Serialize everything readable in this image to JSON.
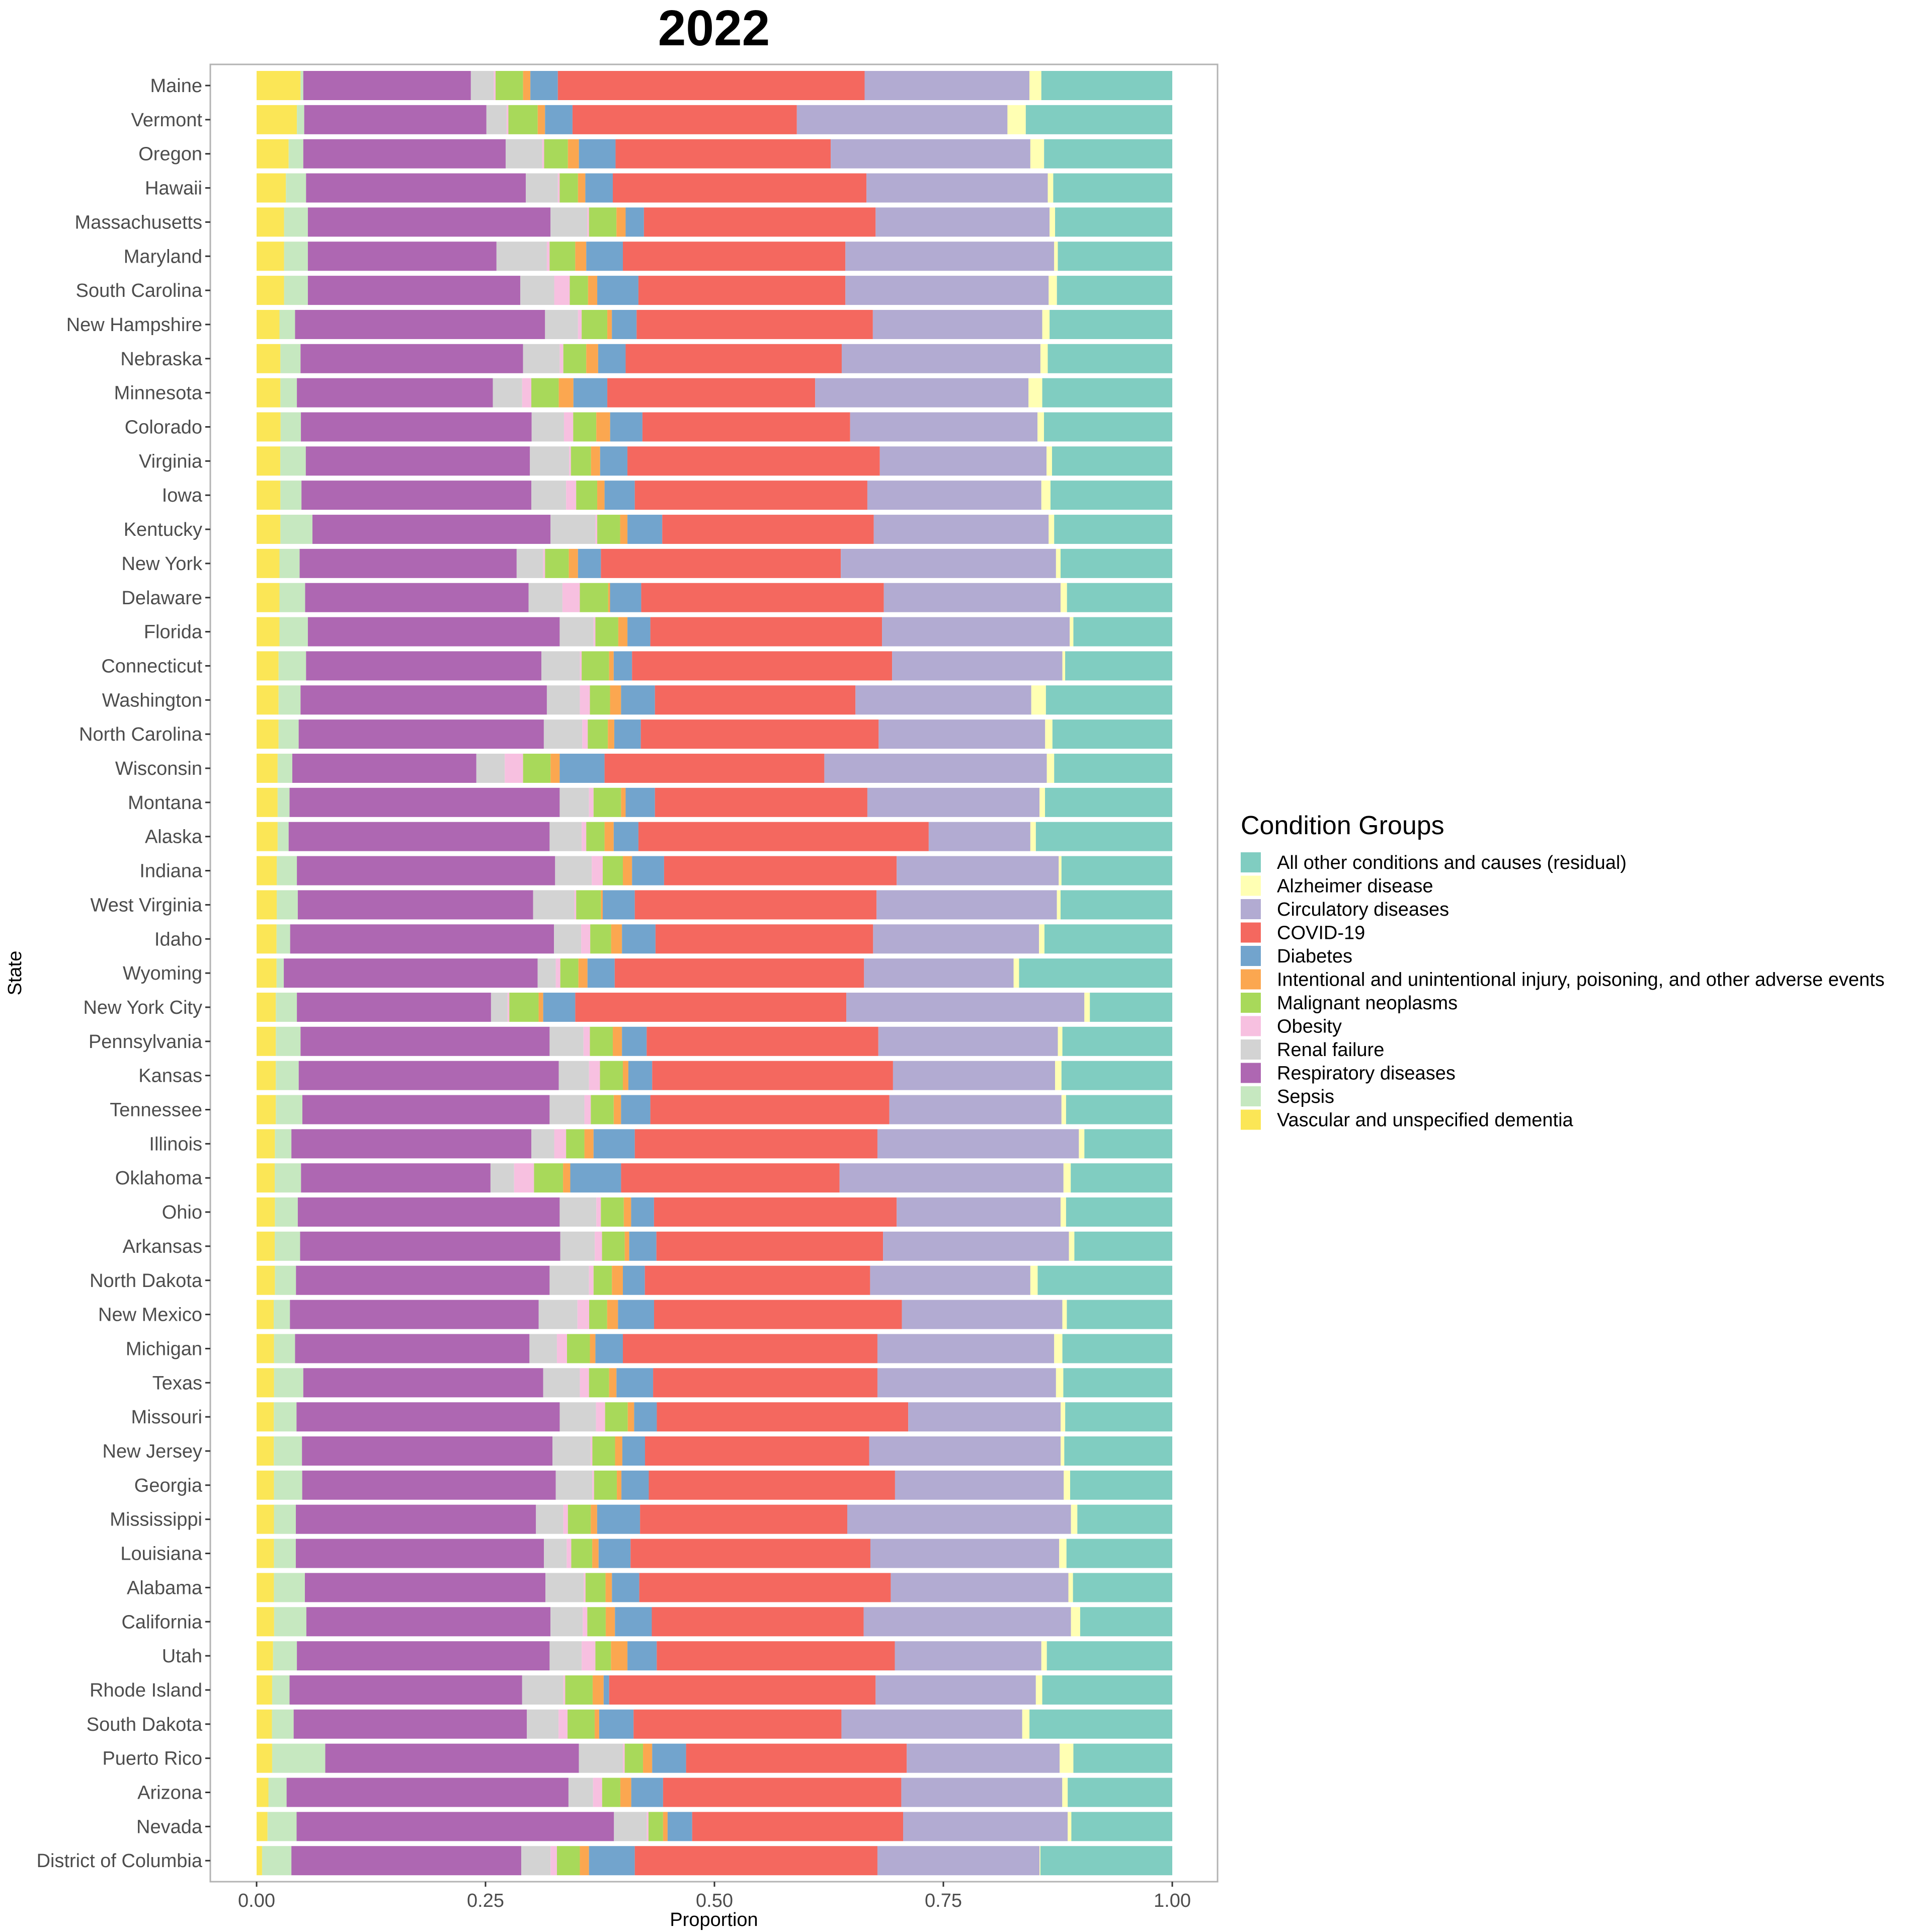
{
  "chart_data": {
    "type": "bar",
    "orientation": "horizontal",
    "stacked": true,
    "title": "2022",
    "xlabel": "Proportion",
    "ylabel": "State",
    "xlim": [
      0,
      1
    ],
    "xticks": [
      "0.00",
      "0.25",
      "0.50",
      "0.75",
      "1.00"
    ],
    "xtick_values": [
      0,
      0.25,
      0.5,
      0.75,
      1
    ],
    "grid": false,
    "legend_position": "right",
    "legend_title": "Condition Groups",
    "legend": [
      {
        "name": "All other conditions and causes (residual)",
        "color": "#80cdc1"
      },
      {
        "name": "Alzheimer disease",
        "color": "#ffffb3"
      },
      {
        "name": "Circulatory diseases",
        "color": "#b2abd2"
      },
      {
        "name": "COVID-19",
        "color": "#f4685f"
      },
      {
        "name": "Diabetes",
        "color": "#72a4cd"
      },
      {
        "name": "Intentional and unintentional injury, poisoning, and other adverse events",
        "color": "#fba750"
      },
      {
        "name": "Malignant neoplasms",
        "color": "#a8d95a"
      },
      {
        "name": "Obesity",
        "color": "#f7c0e0"
      },
      {
        "name": "Renal failure",
        "color": "#d3d3d3"
      },
      {
        "name": "Respiratory diseases",
        "color": "#ae67b2"
      },
      {
        "name": "Sepsis",
        "color": "#c6e8c0"
      },
      {
        "name": "Vascular and unspecified dementia",
        "color": "#fbe656"
      }
    ],
    "stack_order": [
      "Vascular and unspecified dementia",
      "Sepsis",
      "Respiratory diseases",
      "Renal failure",
      "Obesity",
      "Malignant neoplasms",
      "Intentional and unintentional injury, poisoning, and other adverse events",
      "Diabetes",
      "COVID-19",
      "Circulatory diseases",
      "Alzheimer disease",
      "All other conditions and causes (residual)"
    ],
    "categories": [
      "Maine",
      "Vermont",
      "Oregon",
      "Hawaii",
      "Massachusetts",
      "Maryland",
      "South Carolina",
      "New Hampshire",
      "Nebraska",
      "Minnesota",
      "Colorado",
      "Virginia",
      "Iowa",
      "Kentucky",
      "New York",
      "Delaware",
      "Florida",
      "Connecticut",
      "Washington",
      "North Carolina",
      "Wisconsin",
      "Montana",
      "Alaska",
      "Indiana",
      "West Virginia",
      "Idaho",
      "Wyoming",
      "New York City",
      "Pennsylvania",
      "Kansas",
      "Tennessee",
      "Illinois",
      "Oklahoma",
      "Ohio",
      "Arkansas",
      "North Dakota",
      "New Mexico",
      "Michigan",
      "Texas",
      "Missouri",
      "New Jersey",
      "Georgia",
      "Mississippi",
      "Louisiana",
      "Alabama",
      "California",
      "Utah",
      "Rhode Island",
      "South Dakota",
      "Puerto Rico",
      "Arizona",
      "Nevada",
      "District of Columbia"
    ],
    "values": [
      [
        0.048,
        0.003,
        0.183,
        0.025,
        0.002,
        0.03,
        0.008,
        0.03,
        0.335,
        0.18,
        0.013,
        0.143
      ],
      [
        0.044,
        0.008,
        0.199,
        0.022,
        0.002,
        0.032,
        0.008,
        0.03,
        0.245,
        0.23,
        0.02,
        0.16
      ],
      [
        0.035,
        0.016,
        0.221,
        0.04,
        0.002,
        0.026,
        0.012,
        0.04,
        0.235,
        0.218,
        0.015,
        0.14
      ],
      [
        0.032,
        0.022,
        0.24,
        0.035,
        0.002,
        0.02,
        0.008,
        0.03,
        0.277,
        0.198,
        0.006,
        0.13
      ],
      [
        0.03,
        0.026,
        0.265,
        0.04,
        0.002,
        0.03,
        0.01,
        0.02,
        0.253,
        0.19,
        0.006,
        0.128
      ],
      [
        0.03,
        0.026,
        0.206,
        0.055,
        0.003,
        0.028,
        0.012,
        0.04,
        0.243,
        0.228,
        0.004,
        0.125
      ],
      [
        0.03,
        0.026,
        0.232,
        0.037,
        0.017,
        0.02,
        0.01,
        0.045,
        0.226,
        0.222,
        0.009,
        0.126
      ],
      [
        0.025,
        0.017,
        0.273,
        0.036,
        0.004,
        0.028,
        0.005,
        0.027,
        0.258,
        0.185,
        0.008,
        0.134
      ],
      [
        0.026,
        0.022,
        0.243,
        0.04,
        0.004,
        0.025,
        0.013,
        0.03,
        0.236,
        0.217,
        0.008,
        0.136
      ],
      [
        0.026,
        0.018,
        0.214,
        0.032,
        0.01,
        0.03,
        0.016,
        0.037,
        0.227,
        0.233,
        0.015,
        0.142
      ],
      [
        0.026,
        0.022,
        0.25,
        0.035,
        0.01,
        0.025,
        0.015,
        0.035,
        0.225,
        0.203,
        0.007,
        0.139
      ],
      [
        0.026,
        0.028,
        0.246,
        0.043,
        0.002,
        0.022,
        0.01,
        0.03,
        0.277,
        0.183,
        0.006,
        0.132
      ],
      [
        0.026,
        0.023,
        0.251,
        0.038,
        0.011,
        0.023,
        0.008,
        0.033,
        0.254,
        0.19,
        0.01,
        0.133
      ],
      [
        0.026,
        0.035,
        0.26,
        0.049,
        0.002,
        0.025,
        0.008,
        0.038,
        0.231,
        0.191,
        0.006,
        0.129
      ],
      [
        0.025,
        0.022,
        0.237,
        0.029,
        0.002,
        0.026,
        0.01,
        0.025,
        0.262,
        0.235,
        0.005,
        0.122
      ],
      [
        0.025,
        0.028,
        0.244,
        0.037,
        0.019,
        0.031,
        0.002,
        0.034,
        0.265,
        0.193,
        0.007,
        0.115
      ],
      [
        0.025,
        0.031,
        0.275,
        0.037,
        0.002,
        0.025,
        0.01,
        0.025,
        0.253,
        0.205,
        0.004,
        0.108
      ],
      [
        0.024,
        0.03,
        0.257,
        0.042,
        0.002,
        0.03,
        0.005,
        0.02,
        0.284,
        0.186,
        0.003,
        0.117
      ],
      [
        0.024,
        0.024,
        0.269,
        0.036,
        0.011,
        0.022,
        0.012,
        0.037,
        0.219,
        0.192,
        0.016,
        0.138
      ],
      [
        0.024,
        0.022,
        0.268,
        0.042,
        0.006,
        0.022,
        0.007,
        0.029,
        0.26,
        0.182,
        0.008,
        0.131
      ],
      [
        0.023,
        0.016,
        0.201,
        0.031,
        0.02,
        0.03,
        0.01,
        0.049,
        0.24,
        0.243,
        0.008,
        0.129
      ],
      [
        0.023,
        0.013,
        0.295,
        0.032,
        0.005,
        0.03,
        0.005,
        0.032,
        0.232,
        0.188,
        0.006,
        0.139
      ],
      [
        0.023,
        0.012,
        0.285,
        0.035,
        0.005,
        0.02,
        0.01,
        0.027,
        0.317,
        0.111,
        0.006,
        0.149
      ],
      [
        0.022,
        0.022,
        0.282,
        0.04,
        0.012,
        0.022,
        0.01,
        0.035,
        0.254,
        0.177,
        0.003,
        0.121
      ],
      [
        0.022,
        0.023,
        0.257,
        0.045,
        0.002,
        0.027,
        0.002,
        0.035,
        0.264,
        0.197,
        0.004,
        0.122
      ],
      [
        0.022,
        0.015,
        0.291,
        0.03,
        0.01,
        0.023,
        0.012,
        0.037,
        0.24,
        0.183,
        0.006,
        0.141
      ],
      [
        0.022,
        0.008,
        0.28,
        0.02,
        0.005,
        0.02,
        0.01,
        0.03,
        0.275,
        0.165,
        0.006,
        0.169
      ],
      [
        0.021,
        0.023,
        0.212,
        0.018,
        0.002,
        0.032,
        0.005,
        0.035,
        0.296,
        0.26,
        0.006,
        0.09
      ],
      [
        0.021,
        0.027,
        0.272,
        0.037,
        0.007,
        0.025,
        0.01,
        0.027,
        0.253,
        0.196,
        0.005,
        0.12
      ],
      [
        0.021,
        0.025,
        0.284,
        0.033,
        0.012,
        0.025,
        0.006,
        0.026,
        0.263,
        0.177,
        0.007,
        0.121
      ],
      [
        0.021,
        0.029,
        0.27,
        0.038,
        0.007,
        0.025,
        0.008,
        0.032,
        0.261,
        0.188,
        0.005,
        0.116
      ],
      [
        0.02,
        0.018,
        0.262,
        0.025,
        0.013,
        0.02,
        0.01,
        0.045,
        0.265,
        0.22,
        0.006,
        0.096
      ],
      [
        0.02,
        0.029,
        0.209,
        0.026,
        0.022,
        0.032,
        0.008,
        0.056,
        0.241,
        0.247,
        0.008,
        0.112
      ],
      [
        0.02,
        0.025,
        0.286,
        0.04,
        0.005,
        0.025,
        0.008,
        0.025,
        0.265,
        0.179,
        0.006,
        0.116
      ],
      [
        0.02,
        0.028,
        0.287,
        0.038,
        0.008,
        0.025,
        0.005,
        0.03,
        0.25,
        0.205,
        0.006,
        0.108
      ],
      [
        0.02,
        0.023,
        0.277,
        0.043,
        0.005,
        0.02,
        0.012,
        0.024,
        0.246,
        0.175,
        0.008,
        0.147
      ],
      [
        0.019,
        0.018,
        0.276,
        0.043,
        0.013,
        0.02,
        0.012,
        0.04,
        0.275,
        0.178,
        0.005,
        0.117
      ],
      [
        0.019,
        0.023,
        0.256,
        0.03,
        0.011,
        0.025,
        0.006,
        0.03,
        0.278,
        0.193,
        0.009,
        0.12
      ],
      [
        0.019,
        0.032,
        0.262,
        0.04,
        0.01,
        0.022,
        0.008,
        0.04,
        0.245,
        0.195,
        0.008,
        0.119
      ],
      [
        0.019,
        0.025,
        0.29,
        0.04,
        0.01,
        0.025,
        0.007,
        0.025,
        0.277,
        0.168,
        0.005,
        0.118
      ],
      [
        0.019,
        0.031,
        0.276,
        0.042,
        0.002,
        0.025,
        0.008,
        0.025,
        0.247,
        0.211,
        0.004,
        0.119
      ],
      [
        0.019,
        0.031,
        0.278,
        0.04,
        0.002,
        0.025,
        0.005,
        0.03,
        0.27,
        0.185,
        0.007,
        0.112
      ],
      [
        0.019,
        0.024,
        0.263,
        0.03,
        0.005,
        0.025,
        0.007,
        0.047,
        0.227,
        0.245,
        0.007,
        0.104
      ],
      [
        0.019,
        0.024,
        0.272,
        0.025,
        0.005,
        0.023,
        0.007,
        0.035,
        0.263,
        0.207,
        0.008,
        0.116
      ],
      [
        0.019,
        0.034,
        0.264,
        0.042,
        0.002,
        0.022,
        0.007,
        0.03,
        0.276,
        0.195,
        0.005,
        0.109
      ],
      [
        0.019,
        0.035,
        0.265,
        0.035,
        0.005,
        0.02,
        0.01,
        0.04,
        0.23,
        0.225,
        0.01,
        0.1
      ],
      [
        0.018,
        0.026,
        0.276,
        0.035,
        0.015,
        0.017,
        0.018,
        0.032,
        0.26,
        0.16,
        0.006,
        0.137
      ],
      [
        0.017,
        0.019,
        0.254,
        0.045,
        0.002,
        0.03,
        0.012,
        0.006,
        0.291,
        0.175,
        0.007,
        0.142
      ],
      [
        0.017,
        0.024,
        0.258,
        0.035,
        0.01,
        0.03,
        0.005,
        0.038,
        0.23,
        0.2,
        0.008,
        0.158
      ],
      [
        0.017,
        0.058,
        0.277,
        0.048,
        0.002,
        0.02,
        0.01,
        0.037,
        0.241,
        0.167,
        0.015,
        0.108
      ],
      [
        0.013,
        0.02,
        0.31,
        0.027,
        0.01,
        0.02,
        0.012,
        0.035,
        0.262,
        0.177,
        0.006,
        0.115
      ],
      [
        0.012,
        0.032,
        0.349,
        0.036,
        0.002,
        0.016,
        0.005,
        0.027,
        0.232,
        0.181,
        0.004,
        0.111
      ],
      [
        0.006,
        0.032,
        0.251,
        0.032,
        0.007,
        0.025,
        0.01,
        0.05,
        0.265,
        0.177,
        0.001,
        0.144
      ]
    ]
  }
}
